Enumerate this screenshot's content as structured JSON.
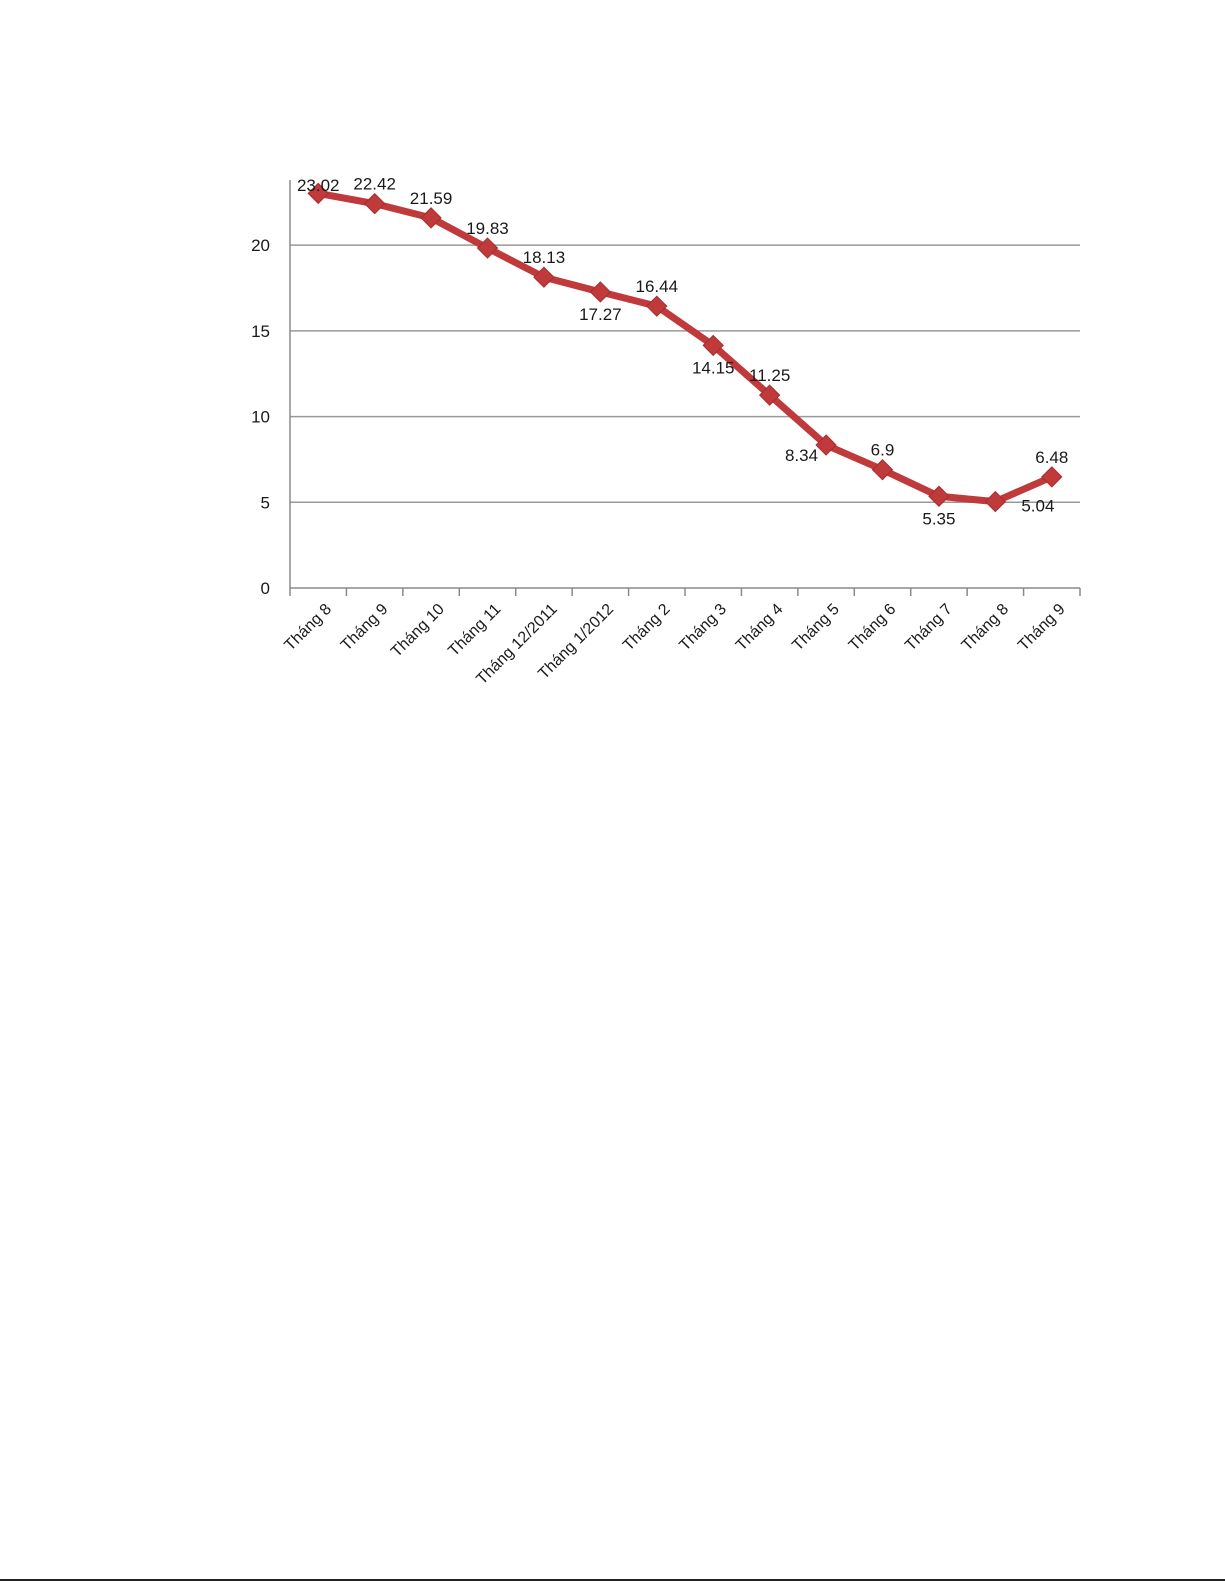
{
  "chart_data": {
    "type": "line",
    "title": "",
    "xlabel": "",
    "ylabel": "",
    "categories": [
      "Tháng 8",
      "Tháng 9",
      "Tháng 10",
      "Tháng 11",
      "Tháng 12/2011",
      "Tháng 1/2012",
      "Tháng 2",
      "Tháng 3",
      "Tháng 4",
      "Tháng 5",
      "Tháng 6",
      "Tháng 7",
      "Tháng 8",
      "Tháng 9"
    ],
    "series": [
      {
        "values": [
          23.02,
          22.42,
          21.59,
          19.83,
          18.13,
          17.27,
          16.44,
          14.15,
          11.25,
          8.34,
          6.9,
          5.35,
          5.04,
          6.48
        ],
        "labels": [
          "23.02",
          "22.42",
          "21.59",
          "19.83",
          "18.13",
          "17.27",
          "16.44",
          "14.15",
          "11.25",
          "8.34",
          "6.9",
          "5.35",
          "5.04",
          "6.48"
        ],
        "label_positions": [
          "above",
          "above",
          "above",
          "above",
          "above",
          "below",
          "above",
          "below",
          "above",
          "left",
          "above",
          "below",
          "right",
          "above"
        ]
      }
    ],
    "yticks": [
      "0",
      "5",
      "10",
      "15",
      "20"
    ],
    "ylim": [
      0,
      23.8
    ],
    "grid": true,
    "legend": "none",
    "line_color": "#c0393b",
    "marker": "diamond"
  }
}
